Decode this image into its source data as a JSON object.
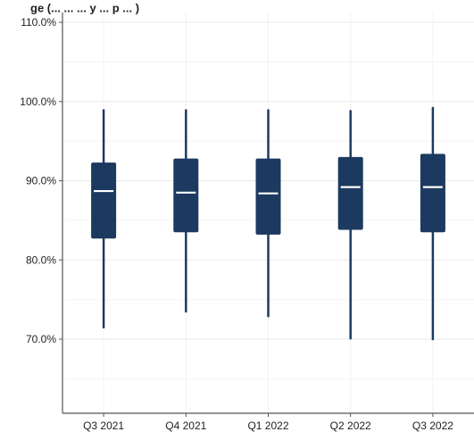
{
  "chart_data": {
    "type": "box",
    "title": "ge (... ... ... y ... p ... )",
    "xlabel": "",
    "ylabel": "",
    "ylim": [
      60,
      110
    ],
    "y_ticks": [
      "110.0%",
      "100.0%",
      "90.0%",
      "80.0%",
      "70.0%"
    ],
    "y_tick_values": [
      110,
      100,
      90,
      80,
      70
    ],
    "categories": [
      "Q3 2021",
      "Q4 2021",
      "Q1 2022",
      "Q2 2022",
      "Q3 2022"
    ],
    "boxes": [
      {
        "min": 71.5,
        "q1": 82.7,
        "median": 88.7,
        "q3": 92.3,
        "max": 98.9
      },
      {
        "min": 73.5,
        "q1": 83.5,
        "median": 88.5,
        "q3": 92.8,
        "max": 98.9
      },
      {
        "min": 72.9,
        "q1": 83.2,
        "median": 88.4,
        "q3": 92.8,
        "max": 98.9
      },
      {
        "min": 70.1,
        "q1": 83.8,
        "median": 89.2,
        "q3": 93.0,
        "max": 98.8
      },
      {
        "min": 70.0,
        "q1": 83.5,
        "median": 89.2,
        "q3": 93.4,
        "max": 99.2
      }
    ],
    "grid": true,
    "colors": {
      "box": "#1c3a5f",
      "median": "#ffffff",
      "grid": "#e9e9e9",
      "axis": "#555555"
    }
  }
}
